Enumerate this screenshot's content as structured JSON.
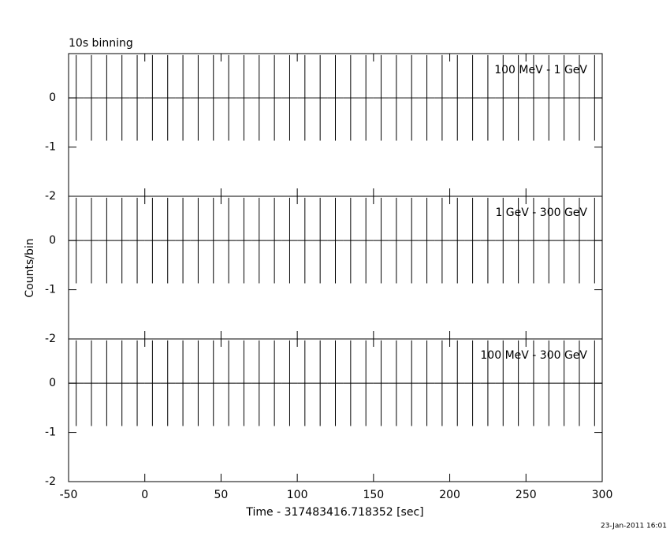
{
  "chart_data": {
    "type": "errorbar",
    "title": "10s binning",
    "x_label": "Time - 317483416.718352 [sec]",
    "y_label": "Counts/bin",
    "timestamp": "23-Jan-2011 16:01",
    "xlim": [
      -50,
      300
    ],
    "xticks": [
      -50,
      0,
      50,
      100,
      150,
      200,
      250,
      300
    ],
    "ylim": [
      -2,
      0.9
    ],
    "yticks": [
      -2,
      -1,
      0
    ],
    "xerr": 5,
    "x": [
      -45,
      -35,
      -25,
      -15,
      -5,
      5,
      15,
      25,
      35,
      45,
      55,
      65,
      75,
      85,
      95,
      105,
      115,
      125,
      135,
      145,
      155,
      165,
      175,
      185,
      195,
      205,
      215,
      225,
      235,
      245,
      255,
      265,
      275,
      285,
      295
    ],
    "color": "#000000",
    "series": [
      {
        "name": "100 MeV - 1 GeV",
        "values": [
          0,
          0,
          0,
          0,
          0,
          0,
          0,
          0,
          0,
          0,
          0,
          0,
          0,
          0,
          0,
          0,
          0,
          0,
          0,
          0,
          0,
          0,
          0,
          0,
          0,
          0,
          0,
          0,
          0,
          0,
          0,
          0,
          0,
          0,
          0
        ],
        "errors": [
          0.87,
          0.87,
          0.87,
          0.87,
          0.87,
          0.87,
          0.87,
          0.87,
          0.87,
          0.87,
          0.87,
          0.87,
          0.87,
          0.87,
          0.87,
          0.87,
          0.87,
          0.87,
          0.87,
          0.87,
          0.87,
          0.87,
          0.87,
          0.87,
          0.87,
          0.87,
          0.87,
          0.87,
          0.87,
          0.87,
          0.87,
          0.87,
          0.87,
          0.87,
          0.87
        ]
      },
      {
        "name": "1 GeV - 300 GeV",
        "values": [
          0,
          0,
          0,
          0,
          0,
          0,
          0,
          0,
          0,
          0,
          0,
          0,
          0,
          0,
          0,
          0,
          0,
          0,
          0,
          0,
          0,
          0,
          0,
          0,
          0,
          0,
          0,
          0,
          0,
          0,
          0,
          0,
          0,
          0,
          0
        ],
        "errors": [
          0.87,
          0.87,
          0.87,
          0.87,
          0.87,
          0.87,
          0.87,
          0.87,
          0.87,
          0.87,
          0.87,
          0.87,
          0.87,
          0.87,
          0.87,
          0.87,
          0.87,
          0.87,
          0.87,
          0.87,
          0.87,
          0.87,
          0.87,
          0.87,
          0.87,
          0.87,
          0.87,
          0.87,
          0.87,
          0.87,
          0.87,
          0.87,
          0.87,
          0.87,
          0.87
        ]
      },
      {
        "name": "100 MeV - 300 GeV",
        "values": [
          0,
          0,
          0,
          0,
          0,
          0,
          0,
          0,
          0,
          0,
          0,
          0,
          0,
          0,
          0,
          0,
          0,
          0,
          0,
          0,
          0,
          0,
          0,
          0,
          0,
          0,
          0,
          0,
          0,
          0,
          0,
          0,
          0,
          0,
          0
        ],
        "errors": [
          0.87,
          0.87,
          0.87,
          0.87,
          0.87,
          0.87,
          0.87,
          0.87,
          0.87,
          0.87,
          0.87,
          0.87,
          0.87,
          0.87,
          0.87,
          0.87,
          0.87,
          0.87,
          0.87,
          0.87,
          0.87,
          0.87,
          0.87,
          0.87,
          0.87,
          0.87,
          0.87,
          0.87,
          0.87,
          0.87,
          0.87,
          0.87,
          0.87,
          0.87,
          0.87
        ]
      }
    ]
  }
}
